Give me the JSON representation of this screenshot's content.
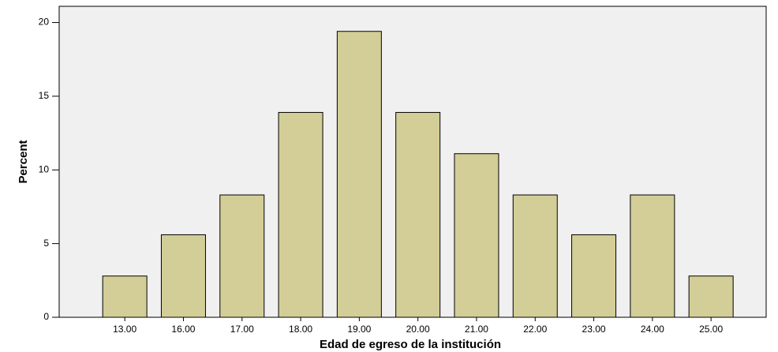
{
  "chart_data": {
    "type": "bar",
    "x_label": "Edad de egreso de la institución",
    "y_label": "Percent",
    "categories": [
      "13.00",
      "16.00",
      "17.00",
      "18.00",
      "19.00",
      "20.00",
      "21.00",
      "22.00",
      "23.00",
      "24.00",
      "25.00"
    ],
    "values": [
      2.8,
      5.6,
      8.3,
      13.9,
      19.4,
      13.9,
      11.1,
      8.3,
      5.6,
      8.3,
      2.8
    ],
    "color": "#d3ce97",
    "ylim": [
      0,
      21.1
    ],
    "yticks": [
      0,
      5,
      10,
      15,
      20
    ],
    "grid": false
  }
}
